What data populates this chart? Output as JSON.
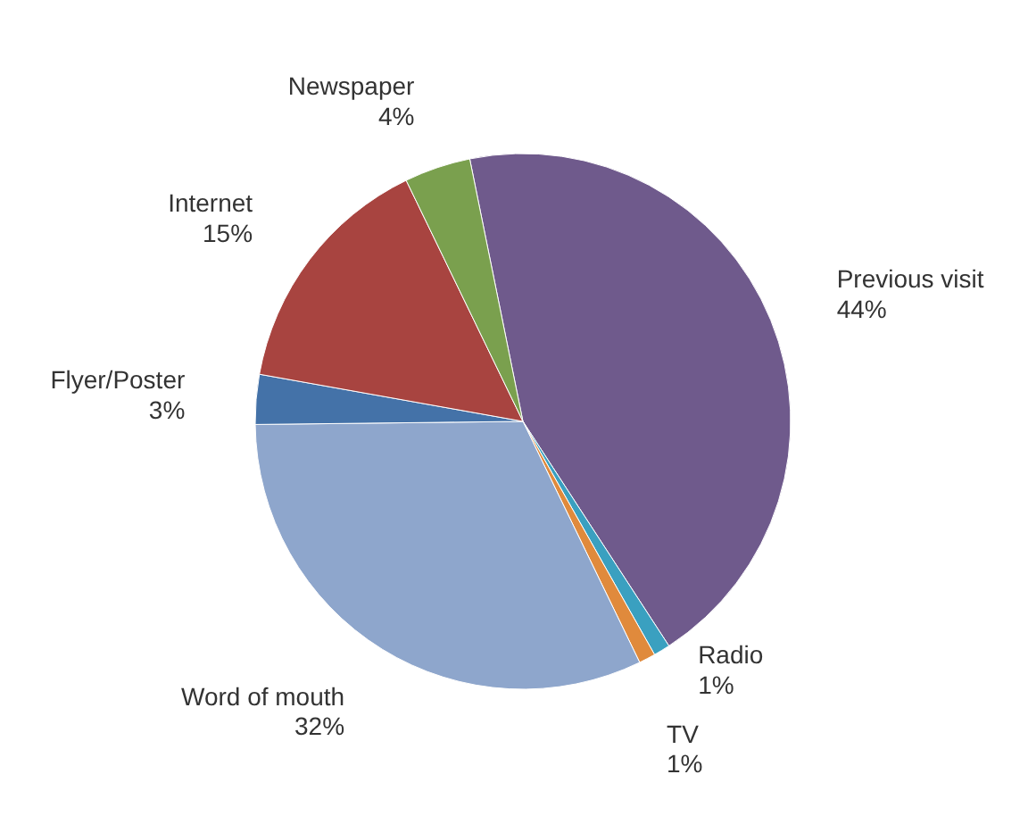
{
  "chart_data": {
    "type": "pie",
    "categories": [
      "Previous visit",
      "Radio",
      "TV",
      "Word of mouth",
      "Flyer/Poster",
      "Internet",
      "Newspaper"
    ],
    "values": [
      44,
      1,
      1,
      32,
      3,
      15,
      4
    ],
    "colors": [
      "#6f5a8c",
      "#3aa0c0",
      "#e08a3c",
      "#8ea6cc",
      "#4472a8",
      "#a84440",
      "#7aa04e"
    ],
    "value_labels": [
      "44%",
      "1%",
      "1%",
      "32%",
      "3%",
      "15%",
      "4%"
    ]
  }
}
